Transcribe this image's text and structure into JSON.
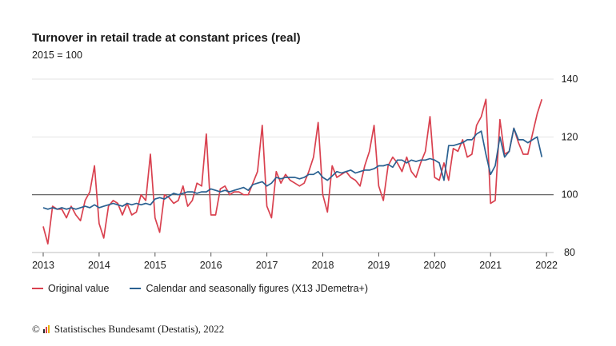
{
  "header": {
    "title": "Turnover in retail trade at constant prices (real)",
    "subtitle": "2015 = 100"
  },
  "legend": {
    "original_label": "Original value",
    "adjusted_label": "Calendar and seasonally figures (X13 JDemetra+)"
  },
  "footer": {
    "copyright_symbol": "©",
    "source": "Statistisches Bundesamt (Destatis), 2022"
  },
  "colors": {
    "original": "#d9414f",
    "adjusted": "#2a6191",
    "reference_line": "#555555",
    "grid": "#e3e3e3"
  },
  "chart_data": {
    "type": "line",
    "title": "Turnover in retail trade at constant prices (real)",
    "subtitle": "2015 = 100",
    "xlabel": "",
    "ylabel": "",
    "x_start": "2013-01",
    "x_ticks": [
      "2013",
      "2014",
      "2015",
      "2016",
      "2017",
      "2018",
      "2019",
      "2020",
      "2021",
      "2022"
    ],
    "ylim": [
      80,
      140
    ],
    "y_ticks": [
      80,
      100,
      120,
      140
    ],
    "reference_line": 100,
    "grid": true,
    "y_axis_position": "right",
    "legend_position": "bottom",
    "series": [
      {
        "name": "Original value",
        "values": [
          89,
          83,
          96,
          95,
          95,
          92,
          96,
          93,
          91,
          98,
          101,
          110,
          90,
          85,
          96,
          98,
          97,
          93,
          97,
          93,
          94,
          100,
          98,
          114,
          92,
          87,
          100,
          99,
          97,
          98,
          103,
          96,
          98,
          104,
          103,
          121,
          93,
          93,
          102,
          103,
          100,
          101,
          101,
          100,
          100,
          104,
          108,
          124,
          96,
          92,
          108,
          104,
          107,
          105,
          104,
          103,
          104,
          108,
          113,
          125,
          100,
          94,
          110,
          106,
          107,
          108,
          106,
          105,
          103,
          110,
          115,
          124,
          103,
          98,
          110,
          113,
          111,
          108,
          113,
          108,
          106,
          111,
          115,
          127,
          106,
          105,
          111,
          105,
          116,
          115,
          119,
          113,
          114,
          124,
          127,
          133,
          97,
          98,
          126,
          114,
          115,
          123,
          118,
          114,
          114,
          121,
          128,
          133
        ],
        "visible": true
      },
      {
        "name": "Calendar and seasonally figures (X13 JDemetra+)",
        "values": [
          95.5,
          95,
          95.5,
          95,
          95.5,
          95,
          95.5,
          95,
          95.5,
          96,
          95.5,
          96.5,
          95.5,
          96,
          96.5,
          97,
          96.5,
          96,
          97,
          96.5,
          97,
          96.5,
          97,
          96.5,
          98.5,
          99,
          98.5,
          99.5,
          100.5,
          100,
          100.5,
          101,
          101,
          100.5,
          101,
          101,
          102,
          101.5,
          101,
          101.5,
          101,
          101.5,
          102,
          102.5,
          101.5,
          103.5,
          104,
          104.5,
          103,
          104,
          106,
          105.5,
          106,
          106,
          106,
          105.5,
          106,
          107,
          107,
          108,
          106,
          105,
          106.5,
          108,
          107.5,
          108,
          108.5,
          107.5,
          108,
          108.5,
          108.5,
          109,
          110,
          110,
          110.5,
          109.5,
          112,
          112,
          111,
          112,
          111.5,
          112,
          112,
          112.5,
          112,
          111,
          105,
          117,
          117,
          117.5,
          118,
          119,
          119,
          121,
          122,
          114,
          107,
          110,
          120,
          113,
          115,
          123,
          119,
          119,
          118,
          119,
          120,
          113
        ],
        "visible": true
      }
    ]
  }
}
